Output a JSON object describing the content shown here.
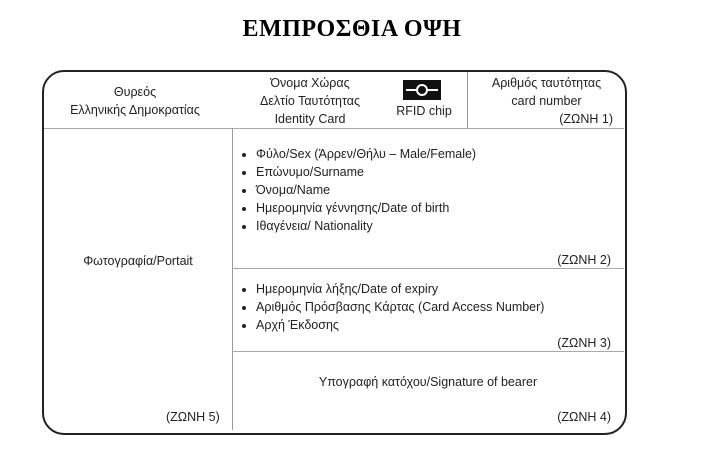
{
  "title": "ΕΜΠΡΟΣΘΙΑ ΟΨΗ",
  "header": {
    "coat_of_arms": [
      "Θυρεός",
      "Ελληνικής Δημοκρατίας"
    ],
    "country": [
      "Όνομα Χώρας",
      "Δελτίο Ταυτότητας",
      "Identity Card"
    ],
    "chip_label": "RFID chip",
    "chip_icon": "rfid-chip-icon",
    "card_number": [
      "Αριθμός ταυτότητας",
      "card number"
    ],
    "zone": "(ΖΩΝΗ 1)"
  },
  "zone2": {
    "items": [
      "Φύλο/Sex  (Άρρεν/Θήλυ – Male/Female)",
      "Επώνυμο/Surname",
      "Όνομα/Name",
      "Ημερομηνία γέννησης/Date of birth",
      "Ιθαγένεια/ Nationality"
    ],
    "zone": "(ΖΩΝΗ 2)"
  },
  "zone3": {
    "items": [
      "Ημερομηνία λήξης/Date of expiry",
      "Αριθμός Πρόσβασης Κάρτας (Card Access Number)",
      "Αρχή Έκδοσης"
    ],
    "zone": "(ΖΩΝΗ 3)"
  },
  "zone4": {
    "text": "Υπογραφή κατόχου/Signature of bearer",
    "zone": "(ΖΩΝΗ 4)"
  },
  "zone5": {
    "text": "Φωτογραφία/Portait",
    "zone": "(ΖΩΝΗ 5)"
  }
}
